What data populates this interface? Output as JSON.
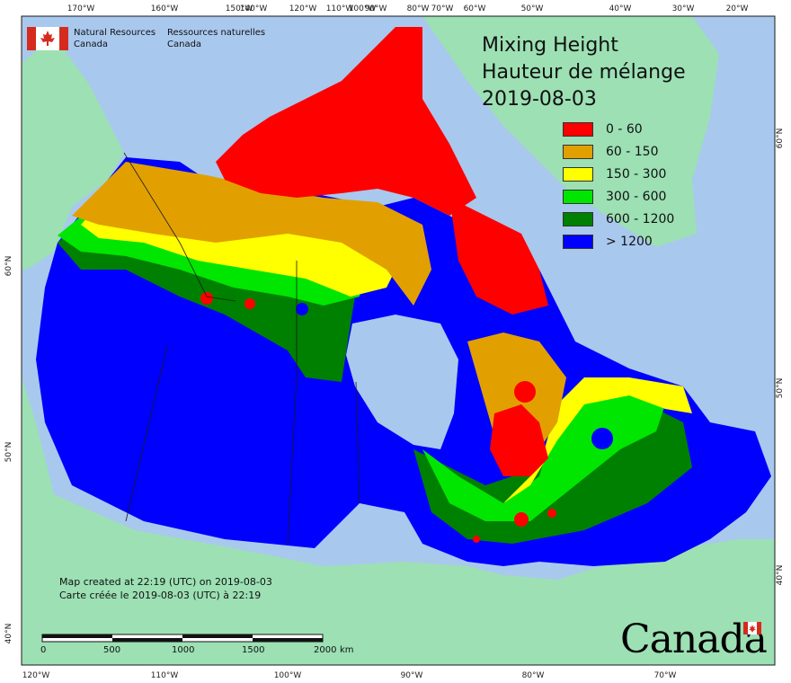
{
  "title": {
    "line1": "Mixing Height",
    "line2": "Hauteur de mélange",
    "date": "2019-08-03"
  },
  "legend": [
    {
      "label": "0 - 60",
      "color": "#ff0000"
    },
    {
      "label": "60 - 150",
      "color": "#e1a000"
    },
    {
      "label": "150 - 300",
      "color": "#ffff00"
    },
    {
      "label": "300 - 600",
      "color": "#00e600"
    },
    {
      "label": "600 - 1200",
      "color": "#008000"
    },
    {
      "label": "> 1200",
      "color": "#0000ff"
    }
  ],
  "agency": {
    "en_line1": "Natural Resources",
    "en_line2": "Canada",
    "fr_line1": "Ressources naturelles",
    "fr_line2": "Canada"
  },
  "credit": {
    "en": "Map created at 22:19 (UTC) on 2019-08-03",
    "fr": "Carte créée le 2019-08-03 (UTC) à 22:19"
  },
  "wordmark": "Canada",
  "scale_bar": {
    "labels": [
      "0",
      "500",
      "1000",
      "1500",
      "2000",
      "km"
    ]
  },
  "graticule": {
    "top": [
      "170°W",
      "160°W",
      "150°W",
      "140°W",
      "120°W",
      "110°W",
      "100°W",
      "90°W",
      "80°W",
      "70°W",
      "60°W",
      "50°W",
      "40°W",
      "30°W",
      "20°W"
    ],
    "bottom": [
      "120°W",
      "110°W",
      "100°W",
      "90°W",
      "80°W",
      "70°W"
    ],
    "left": [
      "60°N",
      "50°N",
      "40°N"
    ],
    "right": [
      "60°N",
      "50°N",
      "40°N"
    ]
  },
  "colors": {
    "ocean": "#a9c8ee",
    "land_outside": "#9ce0b4",
    "border": "#1a1a1a"
  }
}
